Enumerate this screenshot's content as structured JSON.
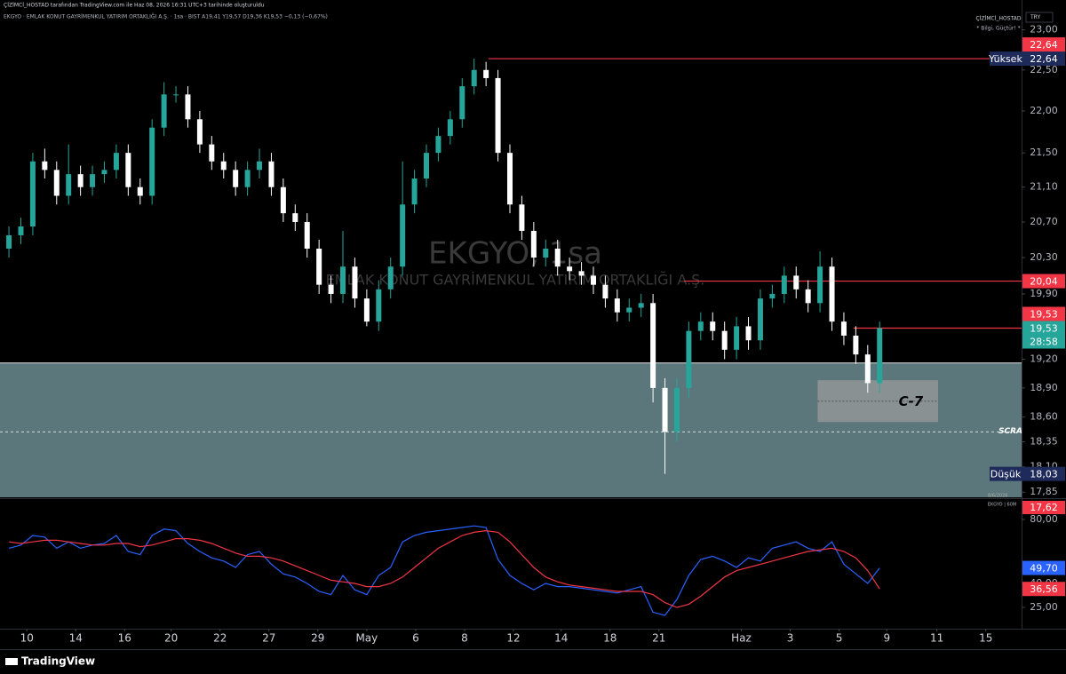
{
  "header": {
    "credit": "ÇİZİMCİ_HOSTAD tarafından TradingView.com ile Haz 08, 2026 16:31 UTC+3 tarihinde oluşturuldu",
    "symbol_line": "EKGYO · EMLAK KONUT GAYRİMENKUL YATIRIM ORTAKLIĞI A.Ş. · 1sa · BIST  A19,41  Y19,57  D19,36  K19,53  −0,13 (−0,67%)"
  },
  "watermark": {
    "symbol": "EKGYO, 1sa",
    "name": "EMLAK KONUT GAYRİMENKUL YATIRIM ORTAKLIĞI A.Ş."
  },
  "author": {
    "name": "ÇİZİMCİ_HOSTAD",
    "motto": "* Bilgi, Güçtür! *"
  },
  "currency": "TRY",
  "footer": "TradingView",
  "chart_data": [
    {
      "type": "candlestick",
      "log": true,
      "ylim": [
        17.8,
        23.38
      ],
      "xlim": [
        -0.75,
        84.9
      ],
      "yticks": [
        {
          "value": 23,
          "label": "23,00"
        },
        {
          "value": 22.5,
          "label": "22,50"
        },
        {
          "value": 22,
          "label": "22,00"
        },
        {
          "value": 21.5,
          "label": "21,50"
        },
        {
          "value": 21.1,
          "label": "21,10"
        },
        {
          "value": 20.7,
          "label": "20,70"
        },
        {
          "value": 20.3,
          "label": "20,30"
        },
        {
          "value": 19.9,
          "label": "19,90"
        },
        {
          "value": 19.2,
          "label": "19,20"
        },
        {
          "value": 18.9,
          "label": "18,90"
        },
        {
          "value": 18.6,
          "label": "18,60"
        },
        {
          "value": 18.35,
          "label": "18,35"
        },
        {
          "value": 18.1,
          "label": "18,10"
        },
        {
          "value": 17.85,
          "label": "17,85"
        }
      ],
      "xticks": [
        {
          "value": 1.5,
          "label": "10"
        },
        {
          "value": 5.6,
          "label": "14"
        },
        {
          "value": 9.7,
          "label": "16"
        },
        {
          "value": 13.6,
          "label": "20"
        },
        {
          "value": 17.7,
          "label": "22"
        },
        {
          "value": 21.8,
          "label": "27"
        },
        {
          "value": 25.9,
          "label": "29"
        },
        {
          "value": 30.0,
          "label": "May"
        },
        {
          "value": 34.1,
          "label": "6"
        },
        {
          "value": 38.2,
          "label": "8"
        },
        {
          "value": 42.3,
          "label": "12"
        },
        {
          "value": 46.3,
          "label": "14"
        },
        {
          "value": 50.4,
          "label": "18"
        },
        {
          "value": 54.5,
          "label": "21"
        },
        {
          "value": 61.4,
          "label": "Haz"
        },
        {
          "value": 65.5,
          "label": "3"
        },
        {
          "value": 69.6,
          "label": "5"
        },
        {
          "value": 73.6,
          "label": "9"
        },
        {
          "value": 77.8,
          "label": "11"
        },
        {
          "value": 81.9,
          "label": "15"
        }
      ],
      "up_color": "#26a69a",
      "down_color": "#ffffff",
      "open": [
        20.4,
        20.55,
        20.65,
        21.4,
        21.3,
        21.0,
        21.25,
        21.1,
        21.25,
        21.3,
        21.5,
        21.1,
        21.0,
        21.8,
        22.2,
        22.2,
        21.9,
        21.6,
        21.4,
        21.3,
        21.1,
        21.3,
        21.4,
        21.1,
        20.8,
        20.7,
        20.4,
        20.0,
        19.9,
        20.2,
        19.85,
        19.6,
        19.95,
        20.2,
        20.9,
        21.2,
        21.5,
        21.7,
        21.9,
        22.3,
        22.5,
        22.4,
        21.5,
        20.9,
        20.6,
        20.3,
        20.4,
        20.2,
        20.15,
        20.1,
        20.0,
        19.85,
        19.7,
        19.75,
        19.8,
        18.9,
        18.45,
        18.9,
        19.5,
        19.6,
        19.5,
        19.3,
        19.55,
        19.4,
        19.85,
        19.9,
        20.1,
        19.95,
        19.8,
        20.2,
        19.6,
        19.45,
        19.25,
        18.95
      ],
      "high": [
        20.65,
        20.75,
        21.5,
        21.55,
        21.4,
        21.6,
        21.35,
        21.35,
        21.4,
        21.6,
        21.6,
        21.2,
        21.9,
        22.35,
        22.3,
        22.3,
        22.0,
        21.7,
        21.5,
        21.4,
        21.4,
        21.55,
        21.5,
        21.2,
        20.9,
        20.8,
        20.5,
        20.1,
        20.6,
        20.3,
        19.95,
        20.05,
        20.3,
        21.4,
        21.3,
        21.6,
        21.8,
        22.0,
        22.4,
        22.64,
        22.6,
        22.5,
        21.6,
        21.0,
        20.7,
        20.5,
        20.5,
        20.3,
        20.25,
        20.2,
        20.1,
        19.95,
        19.85,
        19.9,
        19.9,
        19.0,
        19.0,
        19.6,
        19.7,
        19.7,
        19.6,
        19.65,
        19.65,
        19.95,
        20.0,
        20.2,
        20.2,
        20.05,
        20.37,
        20.3,
        19.7,
        19.55,
        19.35,
        19.6
      ],
      "low": [
        20.3,
        20.45,
        20.55,
        21.2,
        20.9,
        20.9,
        21.0,
        21.0,
        21.15,
        21.2,
        21.0,
        20.9,
        20.9,
        21.7,
        22.1,
        21.8,
        21.5,
        21.3,
        21.2,
        21.0,
        21.0,
        21.2,
        21.0,
        20.7,
        20.6,
        20.3,
        19.9,
        19.8,
        19.8,
        19.75,
        19.55,
        19.5,
        19.85,
        20.1,
        20.8,
        21.1,
        21.4,
        21.6,
        21.8,
        22.2,
        22.3,
        21.4,
        20.8,
        20.5,
        20.2,
        20.2,
        20.1,
        20.05,
        20.0,
        19.9,
        19.75,
        19.6,
        19.6,
        19.65,
        18.75,
        18.03,
        18.35,
        18.8,
        19.4,
        19.4,
        19.2,
        19.2,
        19.3,
        19.3,
        19.75,
        19.8,
        19.85,
        19.7,
        19.7,
        19.5,
        19.35,
        19.15,
        18.85,
        18.85
      ],
      "close": [
        20.55,
        20.65,
        21.4,
        21.3,
        21.0,
        21.25,
        21.1,
        21.25,
        21.3,
        21.5,
        21.1,
        21.0,
        21.8,
        22.2,
        22.2,
        21.9,
        21.6,
        21.4,
        21.3,
        21.1,
        21.3,
        21.4,
        21.1,
        20.8,
        20.7,
        20.4,
        20.0,
        19.9,
        20.2,
        19.85,
        19.6,
        19.95,
        20.2,
        20.9,
        21.2,
        21.5,
        21.7,
        21.9,
        22.3,
        22.5,
        22.4,
        21.5,
        20.9,
        20.6,
        20.3,
        20.4,
        20.2,
        20.15,
        20.1,
        20.0,
        19.85,
        19.7,
        19.75,
        19.8,
        18.9,
        18.45,
        18.9,
        19.5,
        19.6,
        19.5,
        19.3,
        19.55,
        19.4,
        19.85,
        19.9,
        20.1,
        19.95,
        19.8,
        20.2,
        19.6,
        19.45,
        19.25,
        18.95,
        19.53
      ],
      "zone": {
        "top": 19.16,
        "color": "#5b777b"
      },
      "dashed_line": {
        "value": 18.45,
        "label": "SCRATC"
      },
      "box": {
        "x": [
          67.8,
          77.9
        ],
        "y": [
          18.55,
          18.98
        ],
        "label": "C-7"
      },
      "levels": [
        {
          "value": 22.64,
          "start": 40.2,
          "label": "22,64",
          "color": "#f23645"
        },
        {
          "value": 20.04,
          "start": 56.6,
          "label": "20,04",
          "color": "#f23645"
        },
        {
          "value": 19.53,
          "start": 70.8,
          "label": "19,53",
          "color": "#f23645"
        }
      ],
      "high_label": {
        "name": "Yüksek",
        "value": 22.64,
        "label": "22,64"
      },
      "low_label": {
        "name": "Düşük",
        "value": 18.03,
        "label": "18,03"
      },
      "last_price": {
        "value": 19.53,
        "label": "19,53",
        "countdown": "28:58",
        "color": "#26a69a"
      },
      "date_note": "8/6/2026"
    },
    {
      "type": "line",
      "title": "EKGYO | 60M",
      "ylim": [
        11.7,
        92.2
      ],
      "yticks": [
        {
          "value": 80,
          "label": "80,00"
        },
        {
          "value": 40,
          "label": "40,00"
        },
        {
          "value": 25,
          "label": "25,00"
        }
      ],
      "badge": {
        "label": "17,62",
        "color": "#f23645"
      },
      "series": [
        {
          "color": "#2962ff",
          "value_label": "49,70",
          "values": [
            62,
            64,
            70,
            69,
            62,
            66,
            62,
            64,
            65,
            70,
            60,
            58,
            70,
            74,
            73,
            65,
            60,
            56,
            54,
            50,
            58,
            60,
            52,
            46,
            44,
            40,
            35,
            33,
            45,
            36,
            33,
            45,
            50,
            66,
            70,
            72,
            73,
            74,
            75,
            76,
            75,
            55,
            45,
            40,
            36,
            40,
            38,
            38,
            37,
            36,
            35,
            34,
            36,
            38,
            22,
            20,
            30,
            45,
            55,
            57,
            54,
            50,
            56,
            54,
            62,
            64,
            66,
            62,
            60,
            66,
            52,
            46,
            40,
            49.7
          ]
        },
        {
          "color": "#f23645",
          "value_label": "36,56",
          "values": [
            66,
            65,
            66,
            67,
            67,
            66,
            65,
            64,
            64,
            65,
            65,
            63,
            64,
            66,
            68,
            68,
            67,
            65,
            62,
            59,
            57,
            57,
            56,
            54,
            51,
            48,
            45,
            42,
            41,
            40,
            38,
            38,
            40,
            44,
            50,
            56,
            62,
            66,
            70,
            72,
            73,
            72,
            66,
            58,
            50,
            44,
            41,
            39,
            38,
            37,
            36,
            35,
            35,
            35,
            33,
            28,
            25,
            27,
            32,
            38,
            44,
            48,
            50,
            52,
            54,
            56,
            58,
            60,
            61,
            62,
            60,
            56,
            48,
            36.56
          ]
        }
      ]
    }
  ]
}
